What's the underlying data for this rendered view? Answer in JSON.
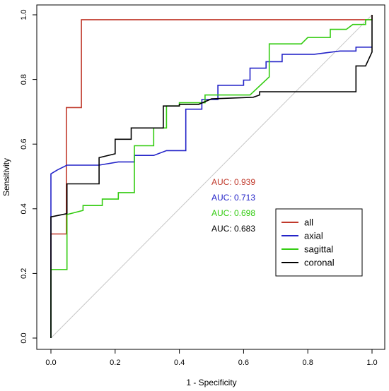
{
  "chart_data": {
    "type": "line",
    "title": "",
    "xlabel": "1 - Specificity",
    "ylabel": "Sensitivity",
    "xlim": [
      0,
      1
    ],
    "ylim": [
      0,
      1
    ],
    "x_ticks": [
      "0.0",
      "0.2",
      "0.4",
      "0.6",
      "0.8",
      "1.0"
    ],
    "y_ticks": [
      "0.0",
      "0.2",
      "0.4",
      "0.6",
      "0.8",
      "1.0"
    ],
    "grid": false,
    "legend_position": "bottom-right",
    "reference_line": {
      "from": [
        0,
        0
      ],
      "to": [
        1,
        1
      ],
      "color": "#c8c8c8"
    },
    "series": [
      {
        "name": "all",
        "color": "#c0392b",
        "auc_label": "AUC: 0.939",
        "points": [
          [
            0,
            0
          ],
          [
            0,
            0.322
          ],
          [
            0.048,
            0.322
          ],
          [
            0.048,
            0.713
          ],
          [
            0.095,
            0.713
          ],
          [
            0.095,
            0.985
          ],
          [
            1,
            0.985
          ],
          [
            1,
            1
          ]
        ]
      },
      {
        "name": "axial",
        "color": "#2424c8",
        "auc_label": "AUC: 0.713",
        "points": [
          [
            0,
            0
          ],
          [
            0,
            0.508
          ],
          [
            0.02,
            0.52
          ],
          [
            0.05,
            0.535
          ],
          [
            0.15,
            0.535
          ],
          [
            0.21,
            0.545
          ],
          [
            0.26,
            0.545
          ],
          [
            0.26,
            0.565
          ],
          [
            0.32,
            0.565
          ],
          [
            0.36,
            0.58
          ],
          [
            0.42,
            0.58
          ],
          [
            0.42,
            0.708
          ],
          [
            0.47,
            0.708
          ],
          [
            0.47,
            0.738
          ],
          [
            0.52,
            0.738
          ],
          [
            0.52,
            0.782
          ],
          [
            0.6,
            0.782
          ],
          [
            0.6,
            0.798
          ],
          [
            0.62,
            0.798
          ],
          [
            0.62,
            0.835
          ],
          [
            0.67,
            0.835
          ],
          [
            0.67,
            0.855
          ],
          [
            0.72,
            0.855
          ],
          [
            0.72,
            0.878
          ],
          [
            0.82,
            0.878
          ],
          [
            0.9,
            0.888
          ],
          [
            0.95,
            0.888
          ],
          [
            0.95,
            0.9
          ],
          [
            1,
            0.9
          ]
        ]
      },
      {
        "name": "sagittal",
        "color": "#33cc11",
        "auc_label": "AUC: 0.698",
        "points": [
          [
            0,
            0
          ],
          [
            0,
            0.212
          ],
          [
            0.05,
            0.212
          ],
          [
            0.05,
            0.382
          ],
          [
            0.1,
            0.395
          ],
          [
            0.1,
            0.41
          ],
          [
            0.16,
            0.41
          ],
          [
            0.16,
            0.43
          ],
          [
            0.21,
            0.43
          ],
          [
            0.21,
            0.45
          ],
          [
            0.26,
            0.45
          ],
          [
            0.26,
            0.595
          ],
          [
            0.32,
            0.595
          ],
          [
            0.32,
            0.65
          ],
          [
            0.36,
            0.65
          ],
          [
            0.36,
            0.718
          ],
          [
            0.4,
            0.718
          ],
          [
            0.4,
            0.728
          ],
          [
            0.48,
            0.728
          ],
          [
            0.48,
            0.752
          ],
          [
            0.62,
            0.752
          ],
          [
            0.68,
            0.808
          ],
          [
            0.68,
            0.91
          ],
          [
            0.78,
            0.91
          ],
          [
            0.8,
            0.93
          ],
          [
            0.87,
            0.93
          ],
          [
            0.87,
            0.955
          ],
          [
            0.92,
            0.955
          ],
          [
            0.94,
            0.97
          ],
          [
            0.98,
            0.97
          ],
          [
            0.98,
            0.985
          ],
          [
            1,
            0.985
          ]
        ]
      },
      {
        "name": "coronal",
        "color": "#000000",
        "auc_label": "AUC: 0.683",
        "points": [
          [
            0,
            0
          ],
          [
            0,
            0.375
          ],
          [
            0.05,
            0.385
          ],
          [
            0.05,
            0.477
          ],
          [
            0.15,
            0.477
          ],
          [
            0.15,
            0.558
          ],
          [
            0.2,
            0.57
          ],
          [
            0.2,
            0.615
          ],
          [
            0.25,
            0.615
          ],
          [
            0.25,
            0.65
          ],
          [
            0.35,
            0.65
          ],
          [
            0.35,
            0.718
          ],
          [
            0.4,
            0.718
          ],
          [
            0.4,
            0.723
          ],
          [
            0.46,
            0.723
          ],
          [
            0.5,
            0.74
          ],
          [
            0.63,
            0.745
          ],
          [
            0.65,
            0.752
          ],
          [
            0.65,
            0.762
          ],
          [
            0.95,
            0.762
          ],
          [
            0.95,
            0.842
          ],
          [
            0.98,
            0.842
          ],
          [
            1,
            0.885
          ],
          [
            1,
            1
          ]
        ]
      }
    ]
  }
}
